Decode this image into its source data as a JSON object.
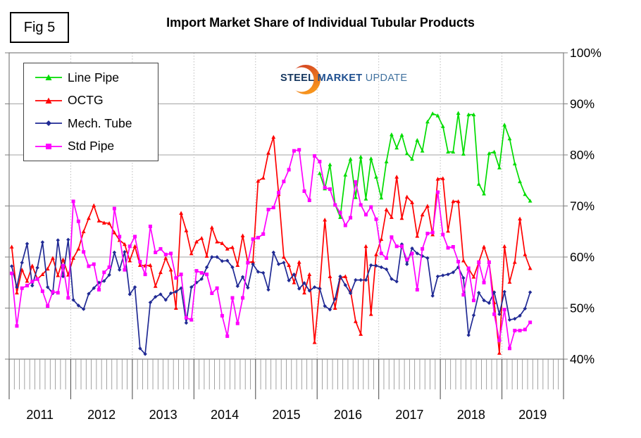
{
  "fig_label": "Fig 5",
  "title": "Import Market Share of Individual Tubular Products",
  "watermark": {
    "word1": "STEEL",
    "word2": "MARKET",
    "word3": "UPDATE",
    "crescent_color_top": "#cf3a22",
    "crescent_color_bottom": "#f7941d"
  },
  "chart_data": {
    "type": "line",
    "title": "Import Market Share of Individual Tubular Products",
    "units": "%",
    "x_range": [
      "2011-01",
      "2019-06"
    ],
    "x_months_span": 108,
    "ylim": [
      40,
      100
    ],
    "grid": true,
    "legend_position": "top-left",
    "y_tick_values": [
      100,
      90,
      80,
      70,
      60,
      50,
      40
    ],
    "y_tick_labels": [
      "100%",
      "90%",
      "80%",
      "70%",
      "60%",
      "50%",
      "40%"
    ],
    "x_year_labels": [
      "2011",
      "2012",
      "2013",
      "2014",
      "2015",
      "2016",
      "2017",
      "2018",
      "2019"
    ],
    "axis_color": "#7f7f7f",
    "grid_color": "#a3a3a3",
    "year_line_color": "#bcbcbc",
    "series": [
      {
        "name": "Line Pipe",
        "color": "#00dc00",
        "marker": "triangle",
        "start_month": "2016-01",
        "offset_months": 60,
        "values": [
          76.4,
          73.4,
          78.1,
          70.3,
          67.8,
          76.1,
          79.2,
          71.7,
          79.6,
          71.4,
          79.3,
          75.7,
          71.6,
          78.7,
          84,
          81.4,
          83.9,
          80.3,
          79.2,
          82.9,
          80.8,
          86.5,
          88.1,
          87.7,
          85.6,
          80.6,
          80.6,
          88.2,
          80.2,
          87.9,
          87.9,
          74.3,
          72.4,
          80.3,
          80.6,
          77.5,
          85.9,
          83.2,
          78.3,
          74.8,
          72.3,
          71
        ]
      },
      {
        "name": "OCTG",
        "color": "#ff0000",
        "marker": "triangle",
        "start_month": "2011-01",
        "offset_months": 0,
        "values": [
          62,
          53,
          57.5,
          55.3,
          58.3,
          55.7,
          56.6,
          57.7,
          59.8,
          56.4,
          59.5,
          56.5,
          59.8,
          61.6,
          65,
          67.6,
          70.1,
          67.1,
          66.7,
          66.6,
          64.8,
          63.3,
          62.5,
          59.3,
          62.1,
          58.4,
          58.3,
          58.4,
          54.3,
          57,
          59.8,
          57.5,
          50,
          68.6,
          65.2,
          60.7,
          63,
          63.7,
          60.2,
          65.8,
          63,
          62.7,
          61.6,
          61.9,
          58.4,
          64.2,
          58.9,
          59.1,
          74.9,
          75.5,
          80.4,
          83.5,
          72.3,
          60,
          58.4,
          55,
          59,
          53,
          56.6,
          43.3,
          54,
          67.3,
          56.2,
          50,
          55.9,
          56.2,
          53.4,
          47.4,
          44.9,
          62.1,
          48.8,
          60.5,
          63.5,
          69.3,
          67.8,
          75.7,
          67.6,
          71.8,
          70.7,
          64.1,
          68.3,
          70,
          64.4,
          75.3,
          75.4,
          65.1,
          70.9,
          70.9,
          59.3,
          57.7,
          56.1,
          59,
          62,
          59,
          51.1,
          41.2,
          62.1,
          55.1,
          59,
          67.5,
          60.5,
          57.8
        ]
      },
      {
        "name": "Mech. Tube",
        "color": "#202a94",
        "marker": "diamond",
        "start_month": "2011-01",
        "offset_months": 0,
        "values": [
          58.2,
          54.1,
          58.9,
          62.6,
          54.4,
          57.9,
          62.9,
          54.1,
          52.9,
          63.3,
          56.2,
          63.4,
          51.6,
          50.5,
          49.8,
          52.8,
          53.9,
          55,
          55.3,
          56.5,
          60.9,
          57.5,
          61,
          52.7,
          54.1,
          42.1,
          41,
          51.1,
          52.2,
          52.7,
          51.6,
          52.9,
          53.2,
          53.9,
          47.1,
          54.1,
          55,
          55.7,
          58,
          60,
          60,
          59.2,
          59.3,
          58,
          54.3,
          56.1,
          54,
          58.6,
          57.1,
          56.9,
          53.6,
          60.9,
          58.6,
          58.9,
          55.4,
          56.6,
          53.8,
          54.9,
          53.4,
          54.1,
          53.8,
          50.4,
          49.7,
          51.8,
          56.2,
          54.5,
          52.9,
          55.5,
          55.5,
          55.5,
          58.4,
          58.3,
          58,
          57.6,
          55.7,
          55.2,
          62.5,
          58.6,
          61.7,
          60.7,
          60.2,
          59.8,
          52.4,
          56.2,
          56.4,
          56.6,
          57,
          58,
          55.9,
          44.7,
          48.6,
          53,
          51.5,
          51,
          53.1,
          48.8,
          53.2,
          47.7,
          47.9,
          48.5,
          49.9,
          53.1
        ]
      },
      {
        "name": "Std Pipe",
        "color": "#ff00ff",
        "marker": "square",
        "start_month": "2011-01",
        "offset_months": 0,
        "values": [
          56.8,
          46.5,
          53.9,
          54.4,
          55.2,
          55.7,
          53.3,
          50.4,
          53.2,
          53,
          58.3,
          52,
          70.9,
          67,
          61,
          58.2,
          58.6,
          53.6,
          57,
          58,
          69.5,
          64,
          57.5,
          62.1,
          64,
          59.1,
          56.6,
          66,
          60.9,
          61.6,
          60.5,
          60.7,
          55.9,
          56.6,
          48.1,
          47.7,
          57.3,
          56.9,
          56.6,
          52.9,
          53.9,
          48.5,
          44.5,
          52,
          47,
          52,
          58.9,
          63.5,
          63.8,
          64.5,
          69.3,
          69.7,
          72.6,
          74.8,
          77.1,
          80.8,
          81,
          72.9,
          71.1,
          79.8,
          78.7,
          73.6,
          73.3,
          70.2,
          68.7,
          66.2,
          67.7,
          74.7,
          70.2,
          68.3,
          69.8,
          67.4,
          60.7,
          59.8,
          63.9,
          62.1,
          62.1,
          59.5,
          60.7,
          53.6,
          61.6,
          64.6,
          64.8,
          72.7,
          64.4,
          61.8,
          62,
          59.1,
          52.6,
          57.8,
          51.5,
          59,
          55,
          59,
          48.8,
          43.7,
          49.7,
          42.1,
          45.6,
          45.6,
          45.8,
          47.2
        ]
      }
    ]
  }
}
